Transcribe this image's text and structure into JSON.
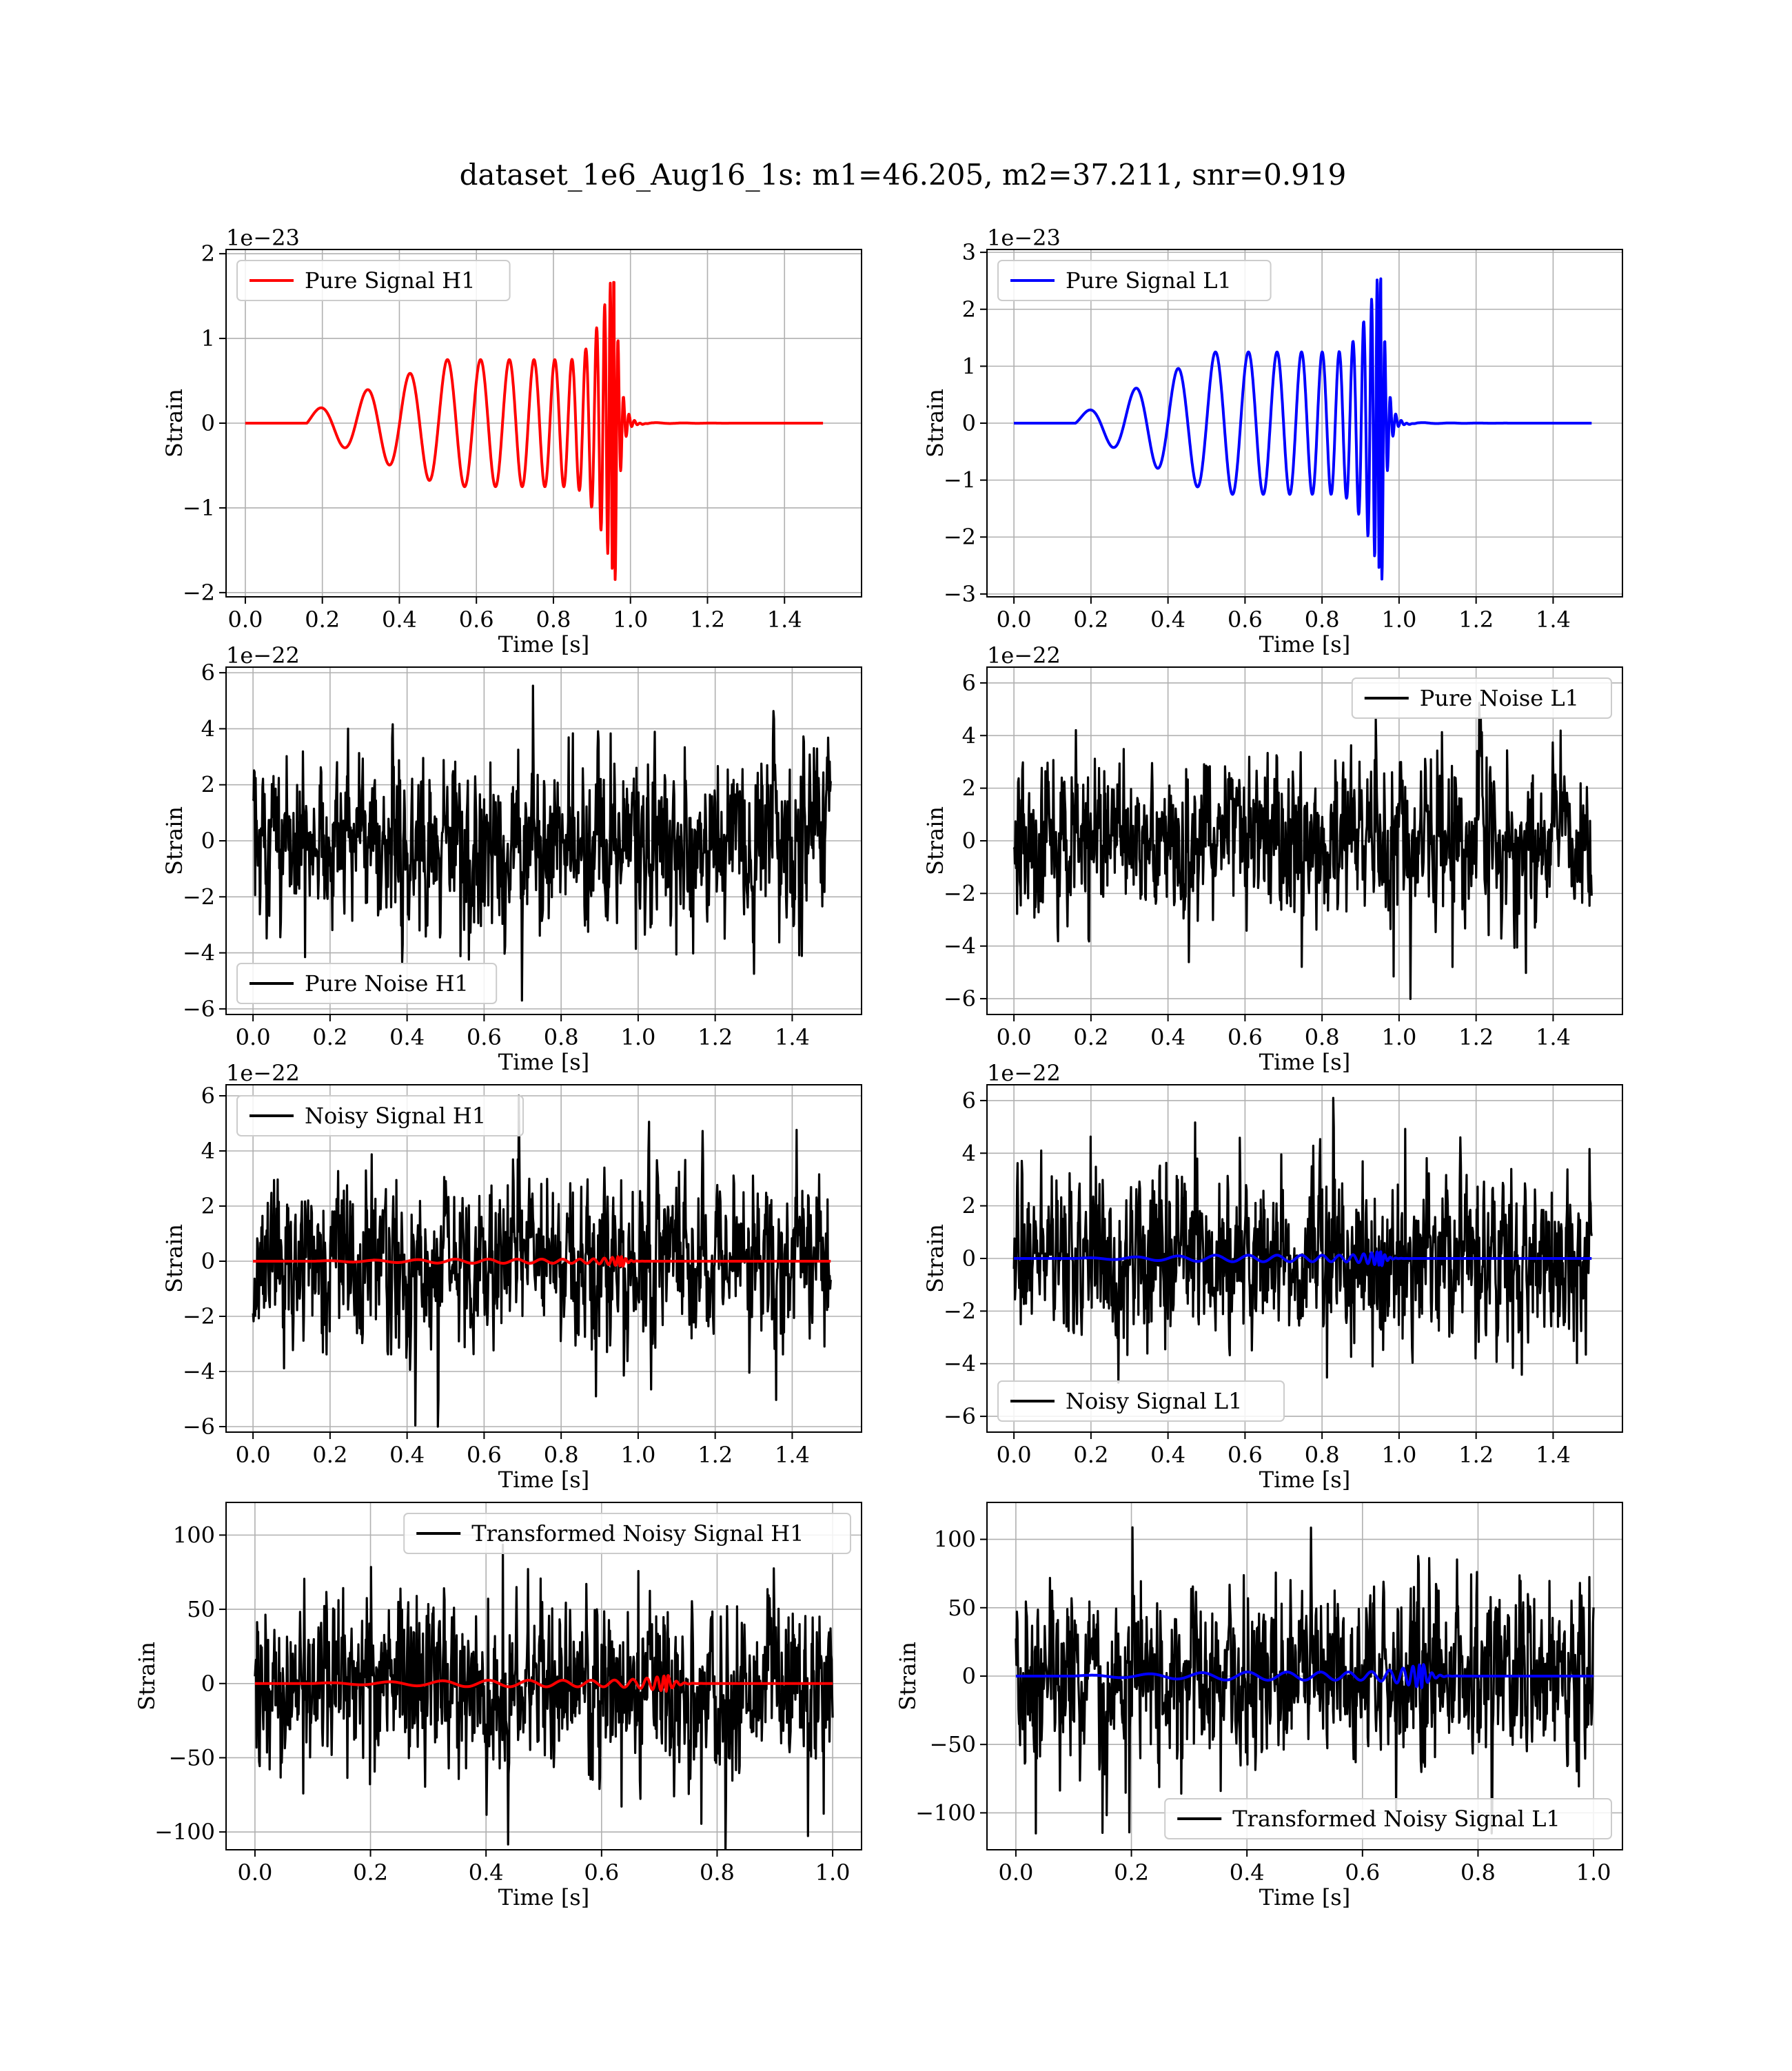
{
  "figure": {
    "title": "dataset_1e6_Aug16_1s: m1=46.205, m2=37.211, snr=0.919"
  },
  "colors": {
    "h1_signal": "#ff0000",
    "l1_signal": "#0000ff",
    "noise": "#000000",
    "grid": "#b0b0b0",
    "legend_border": "#cccccc"
  },
  "chart_data": [
    {
      "id": "pure-signal-h1",
      "type": "line",
      "title": "",
      "xlabel": "Time [s]",
      "ylabel": "Strain",
      "offset_text": "1e−23",
      "xlim": [
        -0.05,
        1.6
      ],
      "ylim": [
        -2.05,
        2.05
      ],
      "xticks": [
        0.0,
        0.2,
        0.4,
        0.6,
        0.8,
        1.0,
        1.2,
        1.4
      ],
      "xtick_labels": [
        "0.0",
        "0.2",
        "0.4",
        "0.6",
        "0.8",
        "1.0",
        "1.2",
        "1.4"
      ],
      "yticks": [
        -2,
        -1,
        0,
        1,
        2
      ],
      "ytick_labels": [
        "−2",
        "−1",
        "0",
        "1",
        "2"
      ],
      "grid": true,
      "legend_position": "upper left",
      "series": [
        {
          "name": "Pure Signal H1",
          "kind": "chirp",
          "color": "#ff0000",
          "t_start": 0.16,
          "t_merge": 0.96,
          "t_end": 1.5,
          "peak": 1.9,
          "early_amp": 0.12,
          "mid_amp": 0.75,
          "seed": 3
        }
      ]
    },
    {
      "id": "pure-signal-l1",
      "type": "line",
      "title": "",
      "xlabel": "Time [s]",
      "ylabel": "Strain",
      "offset_text": "1e−23",
      "xlim": [
        -0.07,
        1.58
      ],
      "ylim": [
        -3.05,
        3.05
      ],
      "xticks": [
        0.0,
        0.2,
        0.4,
        0.6,
        0.8,
        1.0,
        1.2,
        1.4
      ],
      "xtick_labels": [
        "0.0",
        "0.2",
        "0.4",
        "0.6",
        "0.8",
        "1.0",
        "1.2",
        "1.4"
      ],
      "yticks": [
        -3,
        -2,
        -1,
        0,
        1,
        2,
        3
      ],
      "ytick_labels": [
        "−3",
        "−2",
        "−1",
        "0",
        "1",
        "2",
        "3"
      ],
      "grid": true,
      "legend_position": "upper left",
      "series": [
        {
          "name": "Pure Signal L1",
          "kind": "chirp",
          "color": "#0000ff",
          "t_start": 0.16,
          "t_merge": 0.955,
          "t_end": 1.5,
          "peak": 2.85,
          "early_amp": 0.12,
          "mid_amp": 1.25,
          "seed": 5
        }
      ]
    },
    {
      "id": "pure-noise-h1",
      "type": "line",
      "title": "",
      "xlabel": "Time [s]",
      "ylabel": "Strain",
      "offset_text": "1e−22",
      "xlim": [
        -0.07,
        1.58
      ],
      "ylim": [
        -6.2,
        6.2
      ],
      "xticks": [
        0.0,
        0.2,
        0.4,
        0.6,
        0.8,
        1.0,
        1.2,
        1.4
      ],
      "xtick_labels": [
        "0.0",
        "0.2",
        "0.4",
        "0.6",
        "0.8",
        "1.0",
        "1.2",
        "1.4"
      ],
      "yticks": [
        -6,
        -4,
        -2,
        0,
        2,
        4,
        6
      ],
      "ytick_labels": [
        "−6",
        "−4",
        "−2",
        "0",
        "2",
        "4",
        "6"
      ],
      "grid": true,
      "legend_position": "lower left",
      "series": [
        {
          "name": "Pure Noise H1",
          "kind": "noise",
          "color": "#000000",
          "t_start": 0.0,
          "t_end": 1.5,
          "sigma": 1.35,
          "clip": 5.7,
          "seed": 11
        }
      ]
    },
    {
      "id": "pure-noise-l1",
      "type": "line",
      "title": "",
      "xlabel": "Time [s]",
      "ylabel": "Strain",
      "offset_text": "1e−22",
      "xlim": [
        -0.07,
        1.58
      ],
      "ylim": [
        -6.6,
        6.6
      ],
      "xticks": [
        0.0,
        0.2,
        0.4,
        0.6,
        0.8,
        1.0,
        1.2,
        1.4
      ],
      "xtick_labels": [
        "0.0",
        "0.2",
        "0.4",
        "0.6",
        "0.8",
        "1.0",
        "1.2",
        "1.4"
      ],
      "yticks": [
        -6,
        -4,
        -2,
        0,
        2,
        4,
        6
      ],
      "ytick_labels": [
        "−6",
        "−4",
        "−2",
        "0",
        "2",
        "4",
        "6"
      ],
      "grid": true,
      "legend_position": "upper right",
      "series": [
        {
          "name": "Pure Noise L1",
          "kind": "noise",
          "color": "#000000",
          "t_start": 0.0,
          "t_end": 1.5,
          "sigma": 1.4,
          "clip": 6.1,
          "seed": 23
        }
      ]
    },
    {
      "id": "noisy-signal-h1",
      "type": "line",
      "title": "",
      "xlabel": "Time [s]",
      "ylabel": "Strain",
      "offset_text": "1e−22",
      "xlim": [
        -0.07,
        1.58
      ],
      "ylim": [
        -6.2,
        6.4
      ],
      "xticks": [
        0.0,
        0.2,
        0.4,
        0.6,
        0.8,
        1.0,
        1.2,
        1.4
      ],
      "xtick_labels": [
        "0.0",
        "0.2",
        "0.4",
        "0.6",
        "0.8",
        "1.0",
        "1.2",
        "1.4"
      ],
      "yticks": [
        -6,
        -4,
        -2,
        0,
        2,
        4,
        6
      ],
      "ytick_labels": [
        "−6",
        "−4",
        "−2",
        "0",
        "2",
        "4",
        "6"
      ],
      "grid": true,
      "legend_position": "upper left",
      "series": [
        {
          "name": "Noisy Signal H1",
          "kind": "noise",
          "color": "#000000",
          "t_start": 0.0,
          "t_end": 1.5,
          "sigma": 1.4,
          "clip": 6.0,
          "seed": 37
        },
        {
          "name": "",
          "kind": "chirp",
          "color": "#ff0000",
          "t_start": 0.16,
          "t_merge": 0.96,
          "t_end": 1.5,
          "peak": 0.19,
          "early_amp": 0.012,
          "mid_amp": 0.075,
          "seed": 3
        }
      ]
    },
    {
      "id": "noisy-signal-l1",
      "type": "line",
      "title": "",
      "xlabel": "Time [s]",
      "ylabel": "Strain",
      "offset_text": "1e−22",
      "xlim": [
        -0.07,
        1.58
      ],
      "ylim": [
        -6.6,
        6.6
      ],
      "xticks": [
        0.0,
        0.2,
        0.4,
        0.6,
        0.8,
        1.0,
        1.2,
        1.4
      ],
      "xtick_labels": [
        "0.0",
        "0.2",
        "0.4",
        "0.6",
        "0.8",
        "1.0",
        "1.2",
        "1.4"
      ],
      "yticks": [
        -6,
        -4,
        -2,
        0,
        2,
        4,
        6
      ],
      "ytick_labels": [
        "−6",
        "−4",
        "−2",
        "0",
        "2",
        "4",
        "6"
      ],
      "grid": true,
      "legend_position": "lower left",
      "series": [
        {
          "name": "Noisy Signal L1",
          "kind": "noise",
          "color": "#000000",
          "t_start": 0.0,
          "t_end": 1.5,
          "sigma": 1.45,
          "clip": 6.1,
          "seed": 41
        },
        {
          "name": "",
          "kind": "chirp",
          "color": "#0000ff",
          "t_start": 0.16,
          "t_merge": 0.955,
          "t_end": 1.5,
          "peak": 0.285,
          "early_amp": 0.012,
          "mid_amp": 0.125,
          "seed": 5
        }
      ]
    },
    {
      "id": "transformed-noisy-signal-h1",
      "type": "line",
      "title": "",
      "xlabel": "Time [s]",
      "ylabel": "Strain",
      "offset_text": "",
      "xlim": [
        -0.05,
        1.05
      ],
      "ylim": [
        -112,
        122
      ],
      "xticks": [
        0.0,
        0.2,
        0.4,
        0.6,
        0.8,
        1.0
      ],
      "xtick_labels": [
        "0.0",
        "0.2",
        "0.4",
        "0.6",
        "0.8",
        "1.0"
      ],
      "yticks": [
        -100,
        -50,
        0,
        50,
        100
      ],
      "ytick_labels": [
        "−100",
        "−50",
        "0",
        "50",
        "100"
      ],
      "grid": true,
      "legend_position": "upper right",
      "series": [
        {
          "name": "Transformed Noisy Signal H1",
          "kind": "noise",
          "color": "#000000",
          "t_start": 0.0,
          "t_end": 1.0,
          "sigma": 26,
          "clip": 115,
          "seed": 53
        },
        {
          "name": "",
          "kind": "chirp",
          "color": "#ff0000",
          "t_start": 0.1,
          "t_merge": 0.715,
          "t_end": 1.0,
          "peak": 5.5,
          "early_amp": 0.3,
          "mid_amp": 2.2,
          "seed": 3
        }
      ]
    },
    {
      "id": "transformed-noisy-signal-l1",
      "type": "line",
      "title": "",
      "xlabel": "Time [s]",
      "ylabel": "Strain",
      "offset_text": "",
      "xlim": [
        -0.05,
        1.05
      ],
      "ylim": [
        -127,
        127
      ],
      "xticks": [
        0.0,
        0.2,
        0.4,
        0.6,
        0.8,
        1.0
      ],
      "xtick_labels": [
        "0.0",
        "0.2",
        "0.4",
        "0.6",
        "0.8",
        "1.0"
      ],
      "yticks": [
        -100,
        -50,
        0,
        50,
        100
      ],
      "ytick_labels": [
        "−100",
        "−50",
        "0",
        "50",
        "100"
      ],
      "grid": true,
      "legend_position": "lower right",
      "series": [
        {
          "name": "Transformed Noisy Signal L1",
          "kind": "noise",
          "color": "#000000",
          "t_start": 0.0,
          "t_end": 1.0,
          "sigma": 27,
          "clip": 115,
          "seed": 67
        },
        {
          "name": "",
          "kind": "chirp",
          "color": "#0000ff",
          "t_start": 0.1,
          "t_merge": 0.705,
          "t_end": 1.0,
          "peak": 9,
          "early_amp": 0.4,
          "mid_amp": 3.0,
          "seed": 5
        }
      ]
    }
  ]
}
